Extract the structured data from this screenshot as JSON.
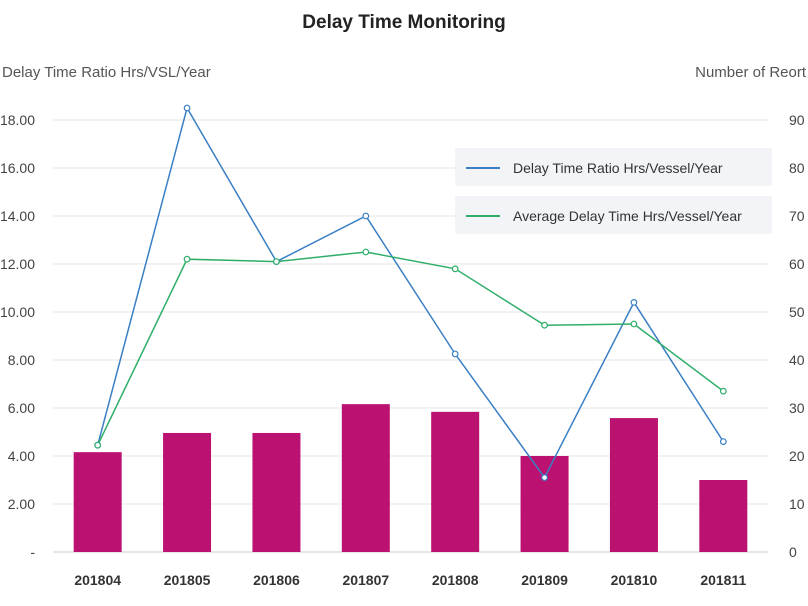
{
  "chart_data": {
    "type": "bar",
    "title": "Delay Time Monitoring",
    "ylabel_left": "Delay Time Ratio Hrs/VSL/Year",
    "ylabel_right": "Number of Reort",
    "categories": [
      "201804",
      "201805",
      "201806",
      "201807",
      "201808",
      "201809",
      "201810",
      "201811"
    ],
    "y_left": {
      "range": [
        0,
        18
      ],
      "ticks": [
        0,
        2,
        4,
        6,
        8,
        10,
        12,
        14,
        16,
        18
      ],
      "tick_labels": [
        "-",
        "2.00",
        "4.00",
        "6.00",
        "8.00",
        "10.00",
        "12.00",
        "14.00",
        "16.00",
        "18.00"
      ]
    },
    "y_right": {
      "range": [
        0,
        90
      ],
      "ticks": [
        0,
        10,
        20,
        30,
        40,
        50,
        60,
        70,
        80,
        90
      ],
      "tick_labels": [
        "0",
        "10",
        "20",
        "30",
        "40",
        "50",
        "60",
        "70",
        "80",
        "90"
      ]
    },
    "bars": {
      "axis": "right",
      "color": "#bb1170",
      "values": [
        20.8,
        24.8,
        24.8,
        30.8,
        29.2,
        20.0,
        27.9,
        15.0
      ]
    },
    "series": [
      {
        "name": "Delay Time Ratio Hrs/Vessel/Year",
        "axis": "left",
        "color": "#3a7fc4",
        "values": [
          4.45,
          18.5,
          12.1,
          14.0,
          8.25,
          3.1,
          10.4,
          4.6
        ]
      },
      {
        "name": "Average Delay Time Hrs/Vessel/Year",
        "axis": "left",
        "color": "#2fae6a",
        "values": [
          4.45,
          12.2,
          12.1,
          12.5,
          11.8,
          9.45,
          9.5,
          6.7
        ]
      }
    ],
    "grid": true,
    "legend_position": "top-right"
  }
}
